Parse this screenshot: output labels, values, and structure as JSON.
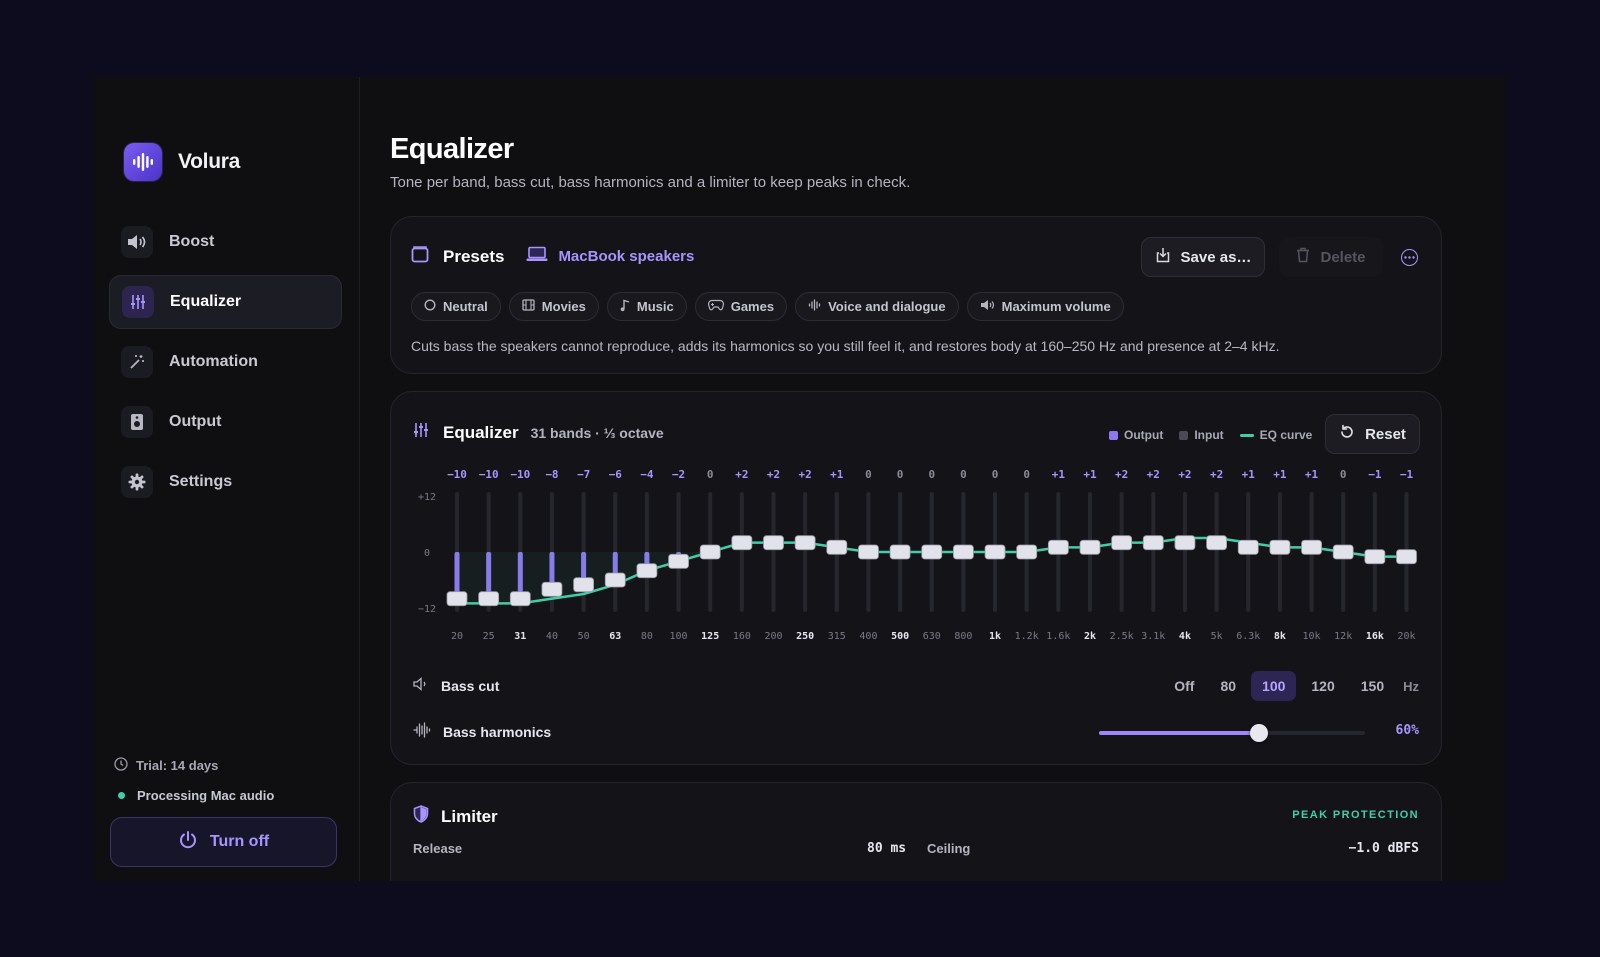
{
  "app": {
    "name": "Volura"
  },
  "sidebar": {
    "items": [
      {
        "label": "Boost",
        "icon": "speaker-icon"
      },
      {
        "label": "Equalizer",
        "icon": "sliders-icon",
        "active": true
      },
      {
        "label": "Automation",
        "icon": "magic-wand-icon"
      },
      {
        "label": "Output",
        "icon": "speaker-box-icon"
      },
      {
        "label": "Settings",
        "icon": "gear-icon"
      }
    ],
    "trial": "Trial: 14 days",
    "status": "Processing Mac audio",
    "turn_off": "Turn off"
  },
  "page": {
    "title": "Equalizer",
    "subtitle": "Tone per band, bass cut, bass harmonics and a limiter to keep peaks in check."
  },
  "presets": {
    "title": "Presets",
    "current": "MacBook speakers",
    "save": "Save as…",
    "delete": "Delete",
    "chips": [
      {
        "label": "Neutral",
        "icon": "circle-icon"
      },
      {
        "label": "Movies",
        "icon": "film-icon"
      },
      {
        "label": "Music",
        "icon": "music-note-icon"
      },
      {
        "label": "Games",
        "icon": "gamepad-icon"
      },
      {
        "label": "Voice and dialogue",
        "icon": "waveform-icon"
      },
      {
        "label": "Maximum volume",
        "icon": "speaker-icon"
      }
    ],
    "description": "Cuts bass the speakers cannot reproduce, adds its harmonics so you still feel it, and restores body at 160–250 Hz and presence at 2–4 kHz."
  },
  "equalizer": {
    "title": "Equalizer",
    "subtitle": "31 bands · ⅓ octave",
    "legend": {
      "output": "Output",
      "input": "Input",
      "curve": "EQ curve"
    },
    "reset": "Reset",
    "y_labels": [
      "+12",
      "0",
      "−12"
    ],
    "bands": [
      {
        "freq": "20",
        "gain": -10,
        "label": "−10",
        "bold": false
      },
      {
        "freq": "25",
        "gain": -10,
        "label": "−10",
        "bold": false
      },
      {
        "freq": "31",
        "gain": -10,
        "label": "−10",
        "bold": true
      },
      {
        "freq": "40",
        "gain": -8,
        "label": "−8",
        "bold": false
      },
      {
        "freq": "50",
        "gain": -7,
        "label": "−7",
        "bold": false
      },
      {
        "freq": "63",
        "gain": -6,
        "label": "−6",
        "bold": true
      },
      {
        "freq": "80",
        "gain": -4,
        "label": "−4",
        "bold": false
      },
      {
        "freq": "100",
        "gain": -2,
        "label": "−2",
        "bold": false
      },
      {
        "freq": "125",
        "gain": 0,
        "label": "0",
        "bold": true
      },
      {
        "freq": "160",
        "gain": 2,
        "label": "+2",
        "bold": false
      },
      {
        "freq": "200",
        "gain": 2,
        "label": "+2",
        "bold": false
      },
      {
        "freq": "250",
        "gain": 2,
        "label": "+2",
        "bold": true
      },
      {
        "freq": "315",
        "gain": 1,
        "label": "+1",
        "bold": false
      },
      {
        "freq": "400",
        "gain": 0,
        "label": "0",
        "bold": false
      },
      {
        "freq": "500",
        "gain": 0,
        "label": "0",
        "bold": true
      },
      {
        "freq": "630",
        "gain": 0,
        "label": "0",
        "bold": false
      },
      {
        "freq": "800",
        "gain": 0,
        "label": "0",
        "bold": false
      },
      {
        "freq": "1k",
        "gain": 0,
        "label": "0",
        "bold": true
      },
      {
        "freq": "1.2k",
        "gain": 0,
        "label": "0",
        "bold": false
      },
      {
        "freq": "1.6k",
        "gain": 1,
        "label": "+1",
        "bold": false
      },
      {
        "freq": "2k",
        "gain": 1,
        "label": "+1",
        "bold": true
      },
      {
        "freq": "2.5k",
        "gain": 2,
        "label": "+2",
        "bold": false
      },
      {
        "freq": "3.1k",
        "gain": 2,
        "label": "+2",
        "bold": false
      },
      {
        "freq": "4k",
        "gain": 2,
        "label": "+2",
        "bold": true
      },
      {
        "freq": "5k",
        "gain": 2,
        "label": "+2",
        "bold": false
      },
      {
        "freq": "6.3k",
        "gain": 1,
        "label": "+1",
        "bold": false
      },
      {
        "freq": "8k",
        "gain": 1,
        "label": "+1",
        "bold": true
      },
      {
        "freq": "10k",
        "gain": 1,
        "label": "+1",
        "bold": false
      },
      {
        "freq": "12k",
        "gain": 0,
        "label": "0",
        "bold": false
      },
      {
        "freq": "16k",
        "gain": -1,
        "label": "−1",
        "bold": true
      },
      {
        "freq": "20k",
        "gain": -1,
        "label": "−1",
        "bold": false
      }
    ],
    "curve_offsets_db": [
      -11,
      -11,
      -11,
      -10,
      -9,
      -7,
      -4,
      -2,
      0,
      2,
      2,
      2,
      1,
      0,
      0,
      0,
      0,
      0,
      0,
      1,
      1,
      2,
      2,
      3,
      3,
      2,
      1,
      1,
      0,
      -1,
      -1
    ],
    "bass_cut": {
      "label": "Bass cut",
      "options": [
        "Off",
        "80",
        "100",
        "120",
        "150"
      ],
      "selected": "100",
      "unit": "Hz"
    },
    "bass_harmonics": {
      "label": "Bass harmonics",
      "value": 0.6,
      "value_label": "60%"
    }
  },
  "limiter": {
    "title": "Limiter",
    "badge": "PEAK PROTECTION",
    "release_label": "Release",
    "release_value": "80 ms",
    "ceiling_label": "Ceiling",
    "ceiling_value": "−1.0 dBFS"
  },
  "colors": {
    "accent": "#a894ff",
    "curve": "#3fcfa7",
    "output_bar": "#8d78f0"
  }
}
